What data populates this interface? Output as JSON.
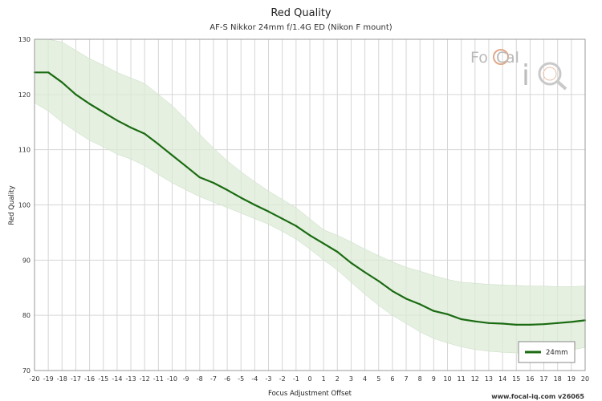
{
  "chart_data": {
    "type": "line",
    "title": "Red Quality",
    "subtitle": "AF-S Nikkor 24mm f/1.4G ED (Nikon F mount)",
    "xlabel": "Focus Adjustment Offset",
    "ylabel": "Red Quality",
    "xlim": [
      -20,
      20
    ],
    "ylim": [
      70,
      130
    ],
    "x_ticks": [
      -20,
      -19,
      -18,
      -17,
      -16,
      -15,
      -14,
      -13,
      -12,
      -11,
      -10,
      -9,
      -8,
      -7,
      -6,
      -5,
      -4,
      -3,
      -2,
      -1,
      0,
      1,
      2,
      3,
      4,
      5,
      6,
      7,
      8,
      9,
      10,
      11,
      12,
      13,
      14,
      15,
      16,
      17,
      18,
      19,
      20
    ],
    "y_ticks": [
      70,
      80,
      90,
      100,
      110,
      120,
      130
    ],
    "grid": true,
    "legend_position": "bottom-right",
    "series": [
      {
        "name": "24mm",
        "color": "#1b6b12",
        "band_color": "#dcebd6",
        "x": [
          -20,
          -19,
          -18,
          -17,
          -16,
          -15,
          -14,
          -13,
          -12,
          -11,
          -10,
          -9,
          -8,
          -7,
          -6,
          -5,
          -4,
          -3,
          -2,
          -1,
          0,
          1,
          2,
          3,
          4,
          5,
          6,
          7,
          8,
          9,
          10,
          11,
          12,
          13,
          14,
          15,
          16,
          17,
          18,
          19,
          20
        ],
        "values": [
          124,
          124,
          122.2,
          120,
          118.3,
          116.8,
          115.3,
          114,
          112.9,
          111,
          109,
          107,
          105,
          104,
          102.7,
          101.3,
          100,
          98.8,
          97.5,
          96.2,
          94.5,
          93,
          91.5,
          89.5,
          87.8,
          86.2,
          84.4,
          83,
          82,
          80.8,
          80.2,
          79.3,
          78.9,
          78.6,
          78.5,
          78.3,
          78.3,
          78.4,
          78.6,
          78.8,
          79.1
        ],
        "upper": [
          130,
          130,
          129.5,
          128,
          126.5,
          125.3,
          124,
          123,
          122,
          120,
          118,
          115.5,
          112.8,
          110.3,
          108,
          106,
          104.2,
          102.5,
          101,
          99.5,
          97.5,
          95.5,
          94.5,
          93.3,
          92,
          90.8,
          89.7,
          88.7,
          88,
          87.2,
          86.5,
          86,
          85.8,
          85.6,
          85.5,
          85.4,
          85.3,
          85.3,
          85.2,
          85.2,
          85.3
        ],
        "lower": [
          118.5,
          117,
          115,
          113.3,
          111.7,
          110.5,
          109.2,
          108.3,
          107.1,
          105.5,
          104,
          102.7,
          101.5,
          100.5,
          99.5,
          98.5,
          97.5,
          96.5,
          95.2,
          93.8,
          92,
          90,
          88.2,
          86,
          83.8,
          81.8,
          80,
          78.5,
          77,
          75.8,
          75,
          74.3,
          73.8,
          73.5,
          73.3,
          73.2,
          73.1,
          73.2,
          73.4,
          73.7,
          74.2
        ]
      }
    ]
  },
  "watermark": {
    "brand": "FoCal iQ",
    "footer": "www.focal-iq.com  v26065"
  }
}
